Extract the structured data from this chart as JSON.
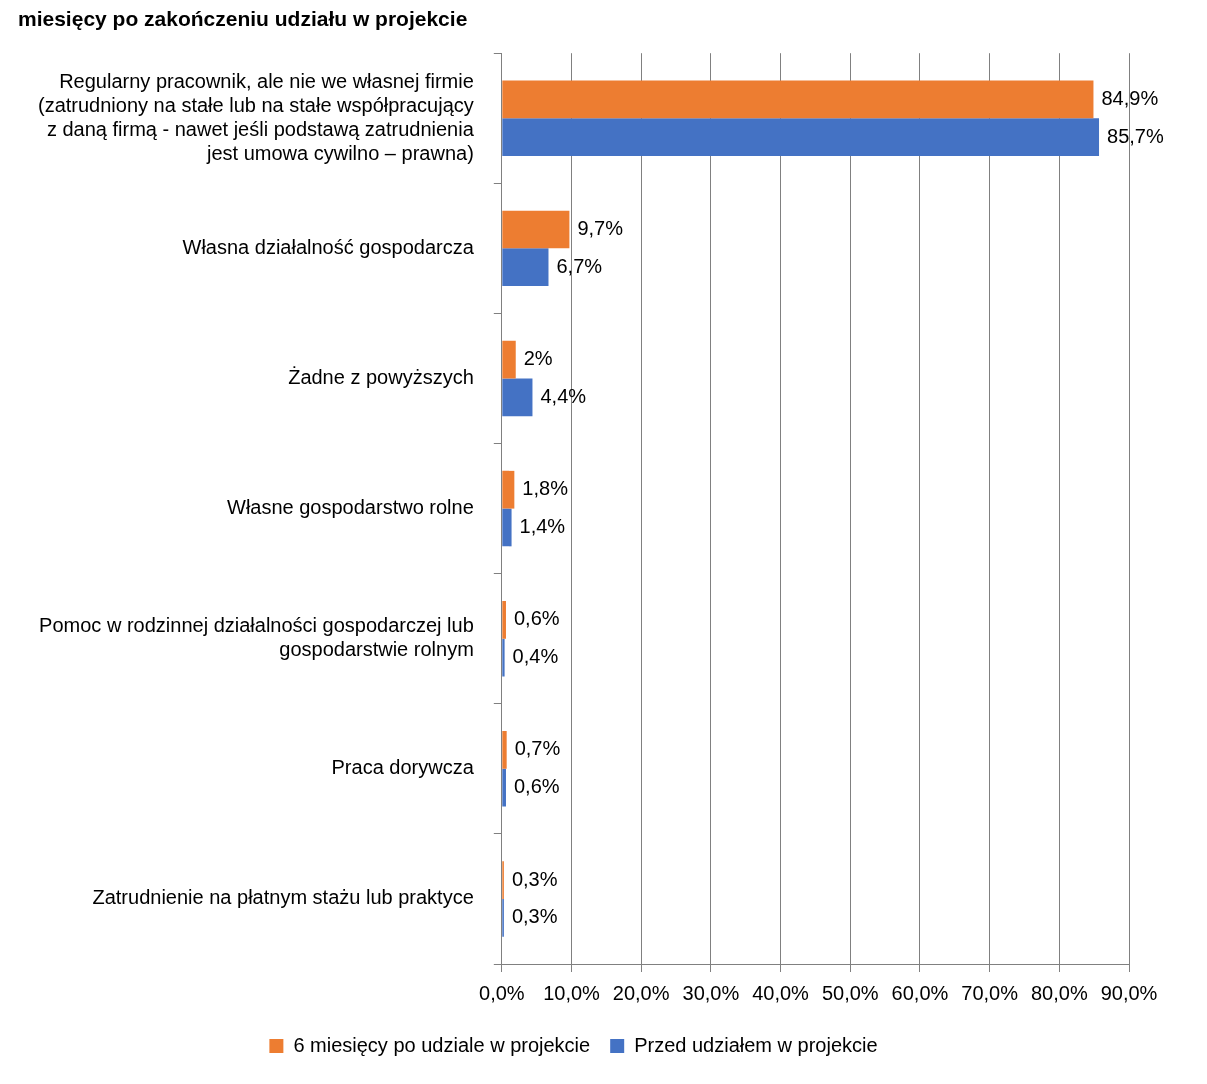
{
  "chart_data": {
    "type": "bar",
    "orientation": "horizontal",
    "title": "miesięcy po zakończeniu udziału w projekcie",
    "categories": [
      "Regularny pracownik, ale nie we własnej firmie (zatrudniony na stałe lub na stałe współpracujący z daną firmą - nawet jeśli podstawą zatrudnienia jest umowa cywilno – prawna)",
      "Własna działalność gospodarcza",
      "Żadne z powyższych",
      "Własne gospodarstwo rolne",
      "Pomoc w rodzinnej działalności gospodarczej lub gospodarstwie rolnym",
      "Praca dorywcza",
      "Zatrudnienie na płatnym stażu lub praktyce"
    ],
    "series": [
      {
        "name": "6 miesięcy po udziale w projekcie",
        "color": "#ed7d31",
        "values": [
          84.9,
          9.7,
          2,
          1.8,
          0.6,
          0.7,
          0.3
        ],
        "value_labels": [
          "84,9%",
          "9,7%",
          "2%",
          "1,8%",
          "0,6%",
          "0,7%",
          "0,3%"
        ]
      },
      {
        "name": "Przed udziałem w projekcie",
        "color": "#4472c4",
        "values": [
          85.7,
          6.7,
          4.4,
          1.4,
          0.4,
          0.6,
          0.3
        ],
        "value_labels": [
          "85,7%",
          "6,7%",
          "4,4%",
          "1,4%",
          "0,4%",
          "0,6%",
          "0,3%"
        ]
      }
    ],
    "xlim": [
      0,
      90
    ],
    "xticks": [
      {
        "value": 0,
        "label": "0,0%"
      },
      {
        "value": 10,
        "label": "10,0%"
      },
      {
        "value": 20,
        "label": "20,0%"
      },
      {
        "value": 30,
        "label": "30,0%"
      },
      {
        "value": 40,
        "label": "40,0%"
      },
      {
        "value": 50,
        "label": "50,0%"
      },
      {
        "value": 60,
        "label": "60,0%"
      },
      {
        "value": 70,
        "label": "70,0%"
      },
      {
        "value": 80,
        "label": "80,0%"
      },
      {
        "value": 90,
        "label": "90,0%"
      }
    ],
    "grid": "x",
    "legend": "bottom"
  }
}
